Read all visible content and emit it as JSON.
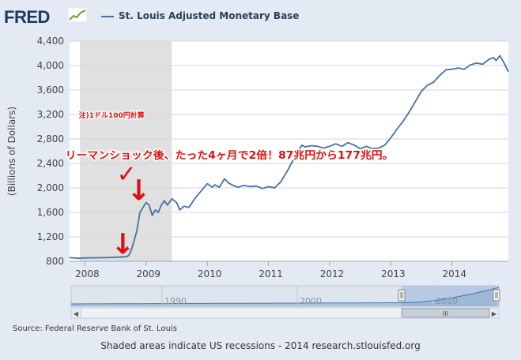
{
  "header": {
    "logo_text": "FRED",
    "logo_icon": "sparkline-icon"
  },
  "chart_data": {
    "type": "line",
    "title": "",
    "xlabel": "",
    "ylabel": "(Billions of Dollars)",
    "ylim": [
      800,
      4400
    ],
    "yticks": [
      800,
      1200,
      1600,
      2000,
      2400,
      2800,
      3200,
      3600,
      4000,
      4400
    ],
    "ytick_labels": [
      "800",
      "1,200",
      "1,600",
      "2,000",
      "2,400",
      "2,800",
      "3,200",
      "3,600",
      "4,000",
      "4,400"
    ],
    "xlim": [
      2007.75,
      2014.92
    ],
    "xticks": [
      2008,
      2009,
      2010,
      2011,
      2012,
      2013,
      2014
    ],
    "xtick_labels": [
      "2008",
      "2009",
      "2010",
      "2011",
      "2012",
      "2013",
      "2014"
    ],
    "grid": true,
    "legend_position": "top",
    "recession": {
      "start": 2007.92,
      "end": 2009.42
    },
    "series": [
      {
        "name": "St. Louis Adjusted Monetary Base",
        "color": "#4572a7",
        "x": [
          2007.75,
          2007.9,
          2008.0,
          2008.2,
          2008.4,
          2008.55,
          2008.68,
          2008.72,
          2008.76,
          2008.8,
          2008.85,
          2008.9,
          2008.95,
          2009.0,
          2009.05,
          2009.1,
          2009.15,
          2009.2,
          2009.25,
          2009.3,
          2009.35,
          2009.42,
          2009.5,
          2009.55,
          2009.62,
          2009.7,
          2009.8,
          2009.9,
          2010.0,
          2010.08,
          2010.12,
          2010.2,
          2010.28,
          2010.35,
          2010.42,
          2010.5,
          2010.6,
          2010.7,
          2010.8,
          2010.9,
          2011.0,
          2011.1,
          2011.2,
          2011.3,
          2011.4,
          2011.48,
          2011.55,
          2011.6,
          2011.7,
          2011.8,
          2011.9,
          2012.0,
          2012.1,
          2012.2,
          2012.3,
          2012.4,
          2012.5,
          2012.6,
          2012.7,
          2012.8,
          2012.9,
          2013.0,
          2013.1,
          2013.2,
          2013.3,
          2013.4,
          2013.5,
          2013.6,
          2013.7,
          2013.8,
          2013.9,
          2014.0,
          2014.1,
          2014.2,
          2014.3,
          2014.4,
          2014.5,
          2014.6,
          2014.68,
          2014.72,
          2014.78,
          2014.84,
          2014.92
        ],
        "values": [
          860,
          850,
          855,
          858,
          862,
          868,
          875,
          900,
          990,
          1120,
          1300,
          1600,
          1680,
          1760,
          1720,
          1550,
          1640,
          1600,
          1720,
          1790,
          1720,
          1820,
          1760,
          1640,
          1700,
          1680,
          1830,
          1950,
          2070,
          2010,
          2050,
          2010,
          2150,
          2080,
          2040,
          2010,
          2040,
          2020,
          2030,
          1990,
          2020,
          2000,
          2100,
          2260,
          2450,
          2600,
          2700,
          2670,
          2690,
          2680,
          2650,
          2680,
          2720,
          2680,
          2740,
          2700,
          2640,
          2680,
          2640,
          2650,
          2700,
          2820,
          2960,
          3090,
          3240,
          3410,
          3580,
          3680,
          3730,
          3840,
          3930,
          3940,
          3960,
          3940,
          4010,
          4040,
          4020,
          4100,
          4130,
          4080,
          4160,
          4060,
          3900
        ]
      }
    ],
    "annotations": [
      {
        "text": "注)1ドル100円計算",
        "x": 2007.9,
        "y": 3150
      },
      {
        "text": "リーマンショック後、たった4ヶ月で2倍！87兆円から177兆円。",
        "x": 2007.68,
        "y": 2475
      },
      {
        "text": "✓",
        "x": 2008.52,
        "y": 2100
      },
      {
        "text": "↓",
        "x": 2008.88,
        "y": 1800,
        "kind": "arrow"
      },
      {
        "text": "↓",
        "x": 2008.62,
        "y": 920,
        "kind": "arrow"
      }
    ],
    "navigator": {
      "labels": [
        "1990",
        "2000",
        "2010"
      ],
      "scrollbar_grip": "III"
    }
  },
  "source": "Source: Federal Reserve Bank of St. Louis",
  "footer": "Shaded areas indicate US recessions - 2014 research.stlouisfed.org"
}
